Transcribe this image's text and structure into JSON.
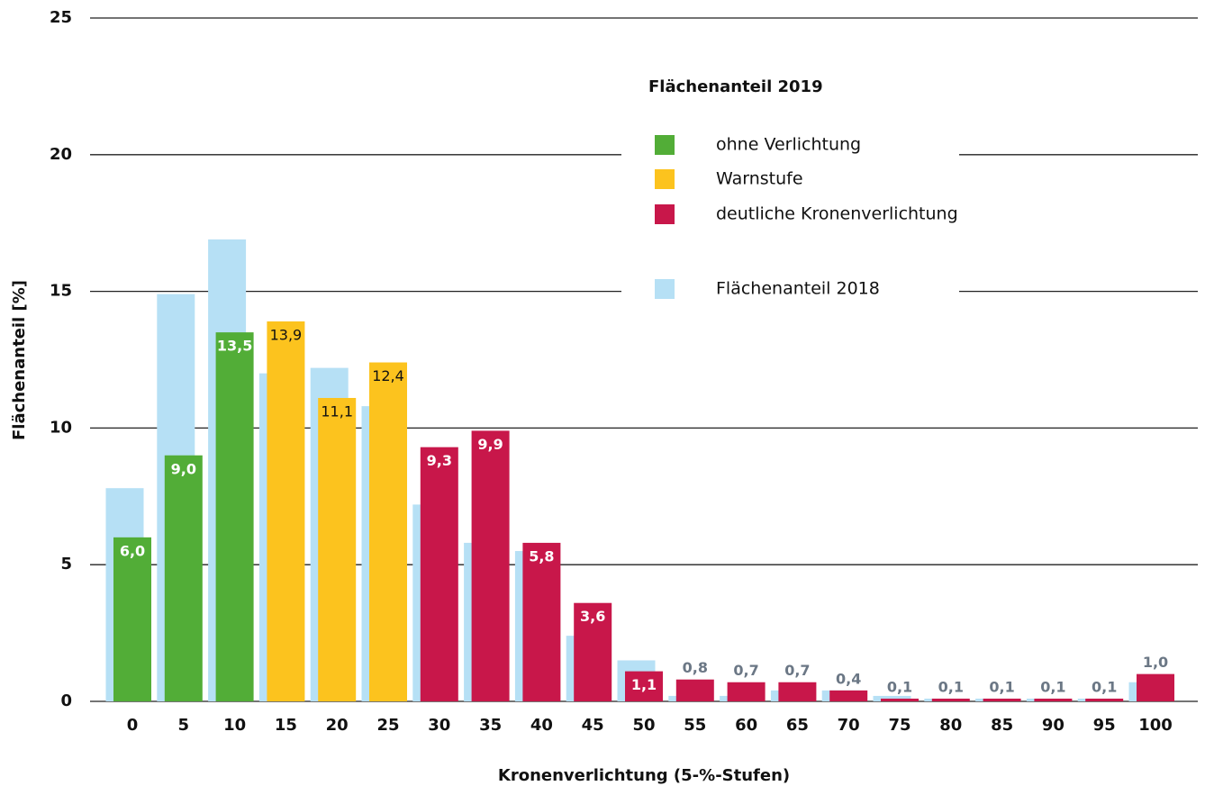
{
  "chart_data": {
    "type": "bar",
    "x_label": "Kronenverlichtung (5-%-Stufen)",
    "y_label": "Flächenanteil [%]",
    "legend_title": "Flächenanteil 2019",
    "categories": [
      0,
      5,
      10,
      15,
      20,
      25,
      30,
      35,
      40,
      45,
      50,
      55,
      60,
      65,
      70,
      75,
      80,
      85,
      90,
      95,
      100
    ],
    "ylim": [
      0,
      25
    ],
    "yticks": [
      0,
      5,
      10,
      15,
      20,
      25
    ],
    "grid": true,
    "series": [
      {
        "name": "ohne Verlichtung",
        "color": "#52ad37",
        "values": [
          6.0,
          9.0,
          13.5,
          null,
          null,
          null,
          null,
          null,
          null,
          null,
          null,
          null,
          null,
          null,
          null,
          null,
          null,
          null,
          null,
          null,
          null
        ],
        "value_labels": [
          "6,0",
          "9,0",
          "13,5",
          null,
          null,
          null,
          null,
          null,
          null,
          null,
          null,
          null,
          null,
          null,
          null,
          null,
          null,
          null,
          null,
          null,
          null
        ]
      },
      {
        "name": "Warnstufe",
        "color": "#fcc31e",
        "values": [
          null,
          null,
          null,
          13.9,
          11.1,
          12.4,
          null,
          null,
          null,
          null,
          null,
          null,
          null,
          null,
          null,
          null,
          null,
          null,
          null,
          null,
          null
        ],
        "value_labels": [
          null,
          null,
          null,
          "13,9",
          "11,1",
          "12,4",
          null,
          null,
          null,
          null,
          null,
          null,
          null,
          null,
          null,
          null,
          null,
          null,
          null,
          null,
          null
        ]
      },
      {
        "name": "deutliche Kronenverlichtung",
        "color": "#c8174a",
        "values": [
          null,
          null,
          null,
          null,
          null,
          null,
          9.3,
          9.9,
          5.8,
          3.6,
          1.1,
          0.8,
          0.7,
          0.7,
          0.4,
          0.1,
          0.1,
          0.1,
          0.1,
          0.1,
          1.0
        ],
        "value_labels": [
          null,
          null,
          null,
          null,
          null,
          null,
          "9,3",
          "9,9",
          "5,8",
          "3,6",
          "1,1",
          "0,8",
          "0,7",
          "0,7",
          "0,4",
          "0,1",
          "0,1",
          "0,1",
          "0,1",
          "0,1",
          "1,0"
        ]
      },
      {
        "name": "Flächenanteil 2018",
        "color": "#b6e0f5",
        "values": [
          7.8,
          14.9,
          16.9,
          12.0,
          12.2,
          10.8,
          7.2,
          5.8,
          5.5,
          2.4,
          1.5,
          0.2,
          0.2,
          0.4,
          0.4,
          0.2,
          0.1,
          0.1,
          0.1,
          0.1,
          0.7
        ]
      }
    ]
  }
}
